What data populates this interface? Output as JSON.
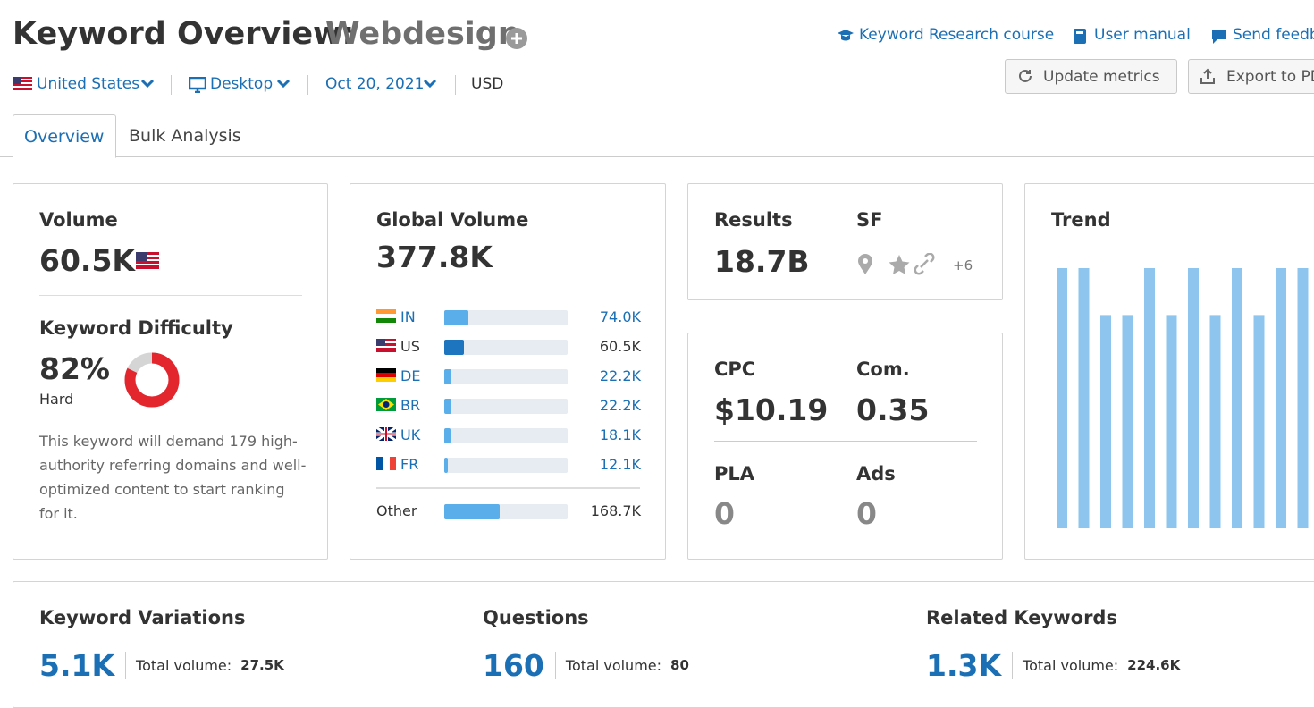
{
  "header": {
    "title": "Keyword Overview:",
    "keyword": "Webdesign",
    "links": [
      "Keyword Research course",
      "User manual",
      "Send feedb"
    ],
    "filters": {
      "country": "United States",
      "device": "Desktop",
      "date": "Oct 20, 2021",
      "currency": "USD"
    },
    "buttons": [
      "Update metrics",
      "Export to PD"
    ]
  },
  "tabs": [
    "Overview",
    "Bulk Analysis"
  ],
  "volume": {
    "label": "Volume",
    "value": "60.5K"
  },
  "difficulty": {
    "label": "Keyword Difficulty",
    "value": 82,
    "value_label": "82%",
    "level": "Hard",
    "description": "This keyword will demand 179 high-authority referring domains and well-optimized content to start ranking for it."
  },
  "global_volume": {
    "label": "Global Volume",
    "value": 377800,
    "value_label": "377.8K",
    "countries": [
      {
        "code": "IN",
        "value": 74000,
        "value_label": "74.0K"
      },
      {
        "code": "US",
        "value": 60500,
        "value_label": "60.5K",
        "selected": true
      },
      {
        "code": "DE",
        "value": 22200,
        "value_label": "22.2K"
      },
      {
        "code": "BR",
        "value": 22200,
        "value_label": "22.2K"
      },
      {
        "code": "UK",
        "value": 18100,
        "value_label": "18.1K"
      },
      {
        "code": "FR",
        "value": 12100,
        "value_label": "12.1K"
      }
    ],
    "other": {
      "label": "Other",
      "value": 168700,
      "value_label": "168.7K"
    }
  },
  "results": {
    "label": "Results",
    "value": "18.7B",
    "sf_label": "SF",
    "sf_more": "+6"
  },
  "cpc": {
    "label": "CPC",
    "value": "$10.19"
  },
  "competition": {
    "label": "Com.",
    "value": "0.35"
  },
  "pla": {
    "label": "PLA",
    "value": "0"
  },
  "ads": {
    "label": "Ads",
    "value": "0"
  },
  "trend": {
    "label": "Trend",
    "color": "#8ec5ef",
    "values": [
      100,
      100,
      82,
      82,
      100,
      82,
      100,
      82,
      100,
      82,
      100,
      100
    ]
  },
  "bottom": [
    {
      "label": "Keyword Variations",
      "value": "5.1K",
      "total_label": "Total volume:",
      "total": "27.5K"
    },
    {
      "label": "Questions",
      "value": "160",
      "total_label": "Total volume:",
      "total": "80"
    },
    {
      "label": "Related Keywords",
      "value": "1.3K",
      "total_label": "Total volume:",
      "total": "224.6K"
    }
  ]
}
